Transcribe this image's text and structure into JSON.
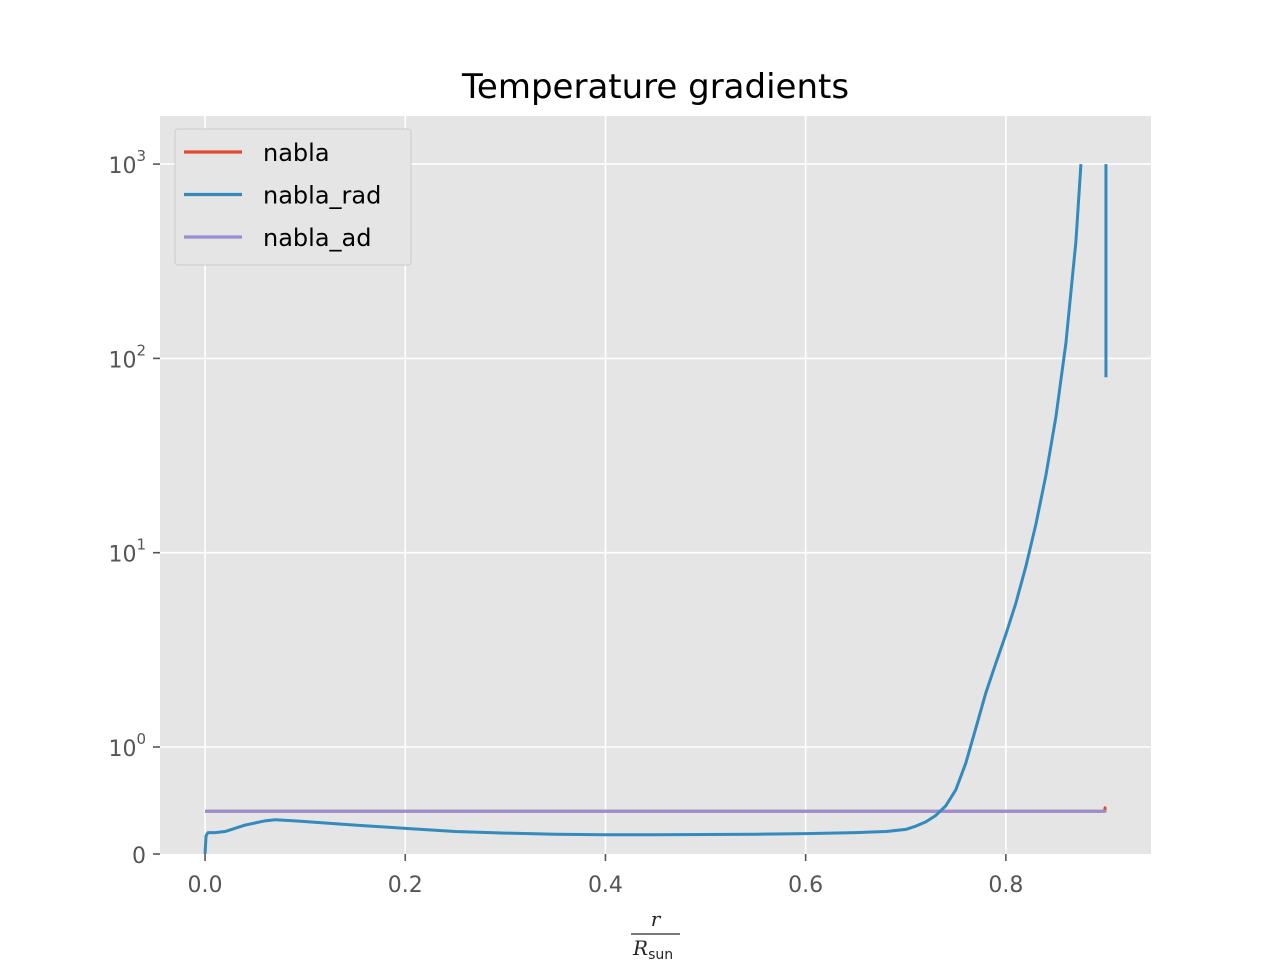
{
  "chart_data": {
    "type": "line",
    "title": "Temperature gradients",
    "xlabel": {
      "numerator": "r",
      "denominator": "R",
      "denominator_subscript": "sun"
    },
    "ylabel": "",
    "xscale": "linear",
    "yscale": "symlog",
    "xlim": [
      -0.045,
      0.945
    ],
    "ylim": [
      0,
      1000
    ],
    "grid": true,
    "legend_position": "top-left",
    "x_ticks": [
      {
        "value": 0.0,
        "label": "0.0"
      },
      {
        "value": 0.2,
        "label": "0.2"
      },
      {
        "value": 0.4,
        "label": "0.4"
      },
      {
        "value": 0.6,
        "label": "0.6"
      },
      {
        "value": 0.8,
        "label": "0.8"
      }
    ],
    "y_ticks": [
      {
        "value": 0,
        "base": "0",
        "exp": ""
      },
      {
        "value": 1,
        "base": "10",
        "exp": "0"
      },
      {
        "value": 10,
        "base": "10",
        "exp": "1"
      },
      {
        "value": 100,
        "base": "10",
        "exp": "2"
      },
      {
        "value": 1000,
        "base": "10",
        "exp": "3"
      }
    ],
    "series": [
      {
        "name": "nabla",
        "color": "#E24A33",
        "points": [
          [
            0.0,
            0.4
          ],
          [
            0.899,
            0.4
          ],
          [
            0.899,
            0.43
          ],
          [
            0.9,
            0.44
          ]
        ]
      },
      {
        "name": "nabla_rad",
        "color": "#348ABD",
        "points": [
          [
            0.0,
            0.0
          ],
          [
            0.001,
            0.17
          ],
          [
            0.003,
            0.2
          ],
          [
            0.01,
            0.2
          ],
          [
            0.02,
            0.21
          ],
          [
            0.04,
            0.27
          ],
          [
            0.06,
            0.31
          ],
          [
            0.07,
            0.32
          ],
          [
            0.09,
            0.31
          ],
          [
            0.12,
            0.29
          ],
          [
            0.15,
            0.27
          ],
          [
            0.2,
            0.24
          ],
          [
            0.25,
            0.21
          ],
          [
            0.3,
            0.195
          ],
          [
            0.35,
            0.185
          ],
          [
            0.4,
            0.18
          ],
          [
            0.45,
            0.18
          ],
          [
            0.5,
            0.182
          ],
          [
            0.55,
            0.185
          ],
          [
            0.6,
            0.19
          ],
          [
            0.65,
            0.2
          ],
          [
            0.68,
            0.21
          ],
          [
            0.7,
            0.23
          ],
          [
            0.71,
            0.26
          ],
          [
            0.72,
            0.3
          ],
          [
            0.73,
            0.36
          ],
          [
            0.74,
            0.45
          ],
          [
            0.75,
            0.6
          ],
          [
            0.76,
            0.85
          ],
          [
            0.77,
            1.25
          ],
          [
            0.78,
            1.9
          ],
          [
            0.79,
            2.7
          ],
          [
            0.8,
            3.8
          ],
          [
            0.81,
            5.5
          ],
          [
            0.82,
            8.5
          ],
          [
            0.83,
            14
          ],
          [
            0.84,
            25
          ],
          [
            0.85,
            50
          ],
          [
            0.86,
            120
          ],
          [
            0.87,
            400
          ],
          [
            0.875,
            1000
          ]
        ],
        "points_2": [
          [
            0.9,
            1000
          ],
          [
            0.9,
            150
          ],
          [
            0.9,
            80
          ]
        ]
      },
      {
        "name": "nabla_ad",
        "color": "#988ED5",
        "points": [
          [
            0.0,
            0.4
          ],
          [
            0.9,
            0.4
          ]
        ]
      }
    ]
  }
}
